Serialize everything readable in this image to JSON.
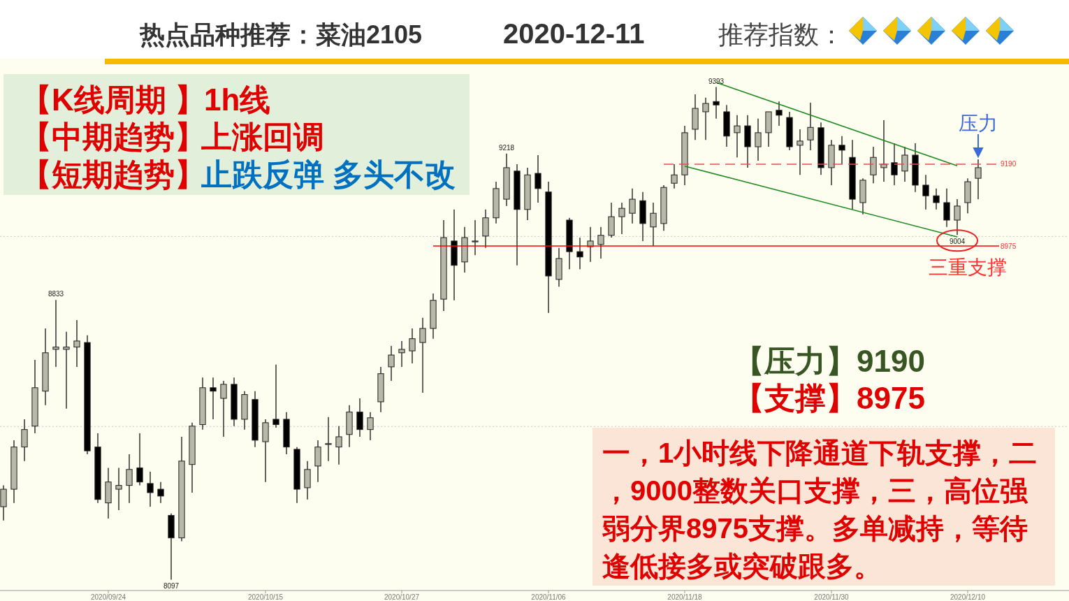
{
  "chart_data": {
    "type": "candlestick",
    "title": "热点品种推荐：菜油2105",
    "subtitle": "2020-12-11",
    "categories": [
      null,
      null,
      null,
      null,
      null,
      null,
      null,
      null,
      null,
      null,
      "2020/09/24",
      null,
      null,
      null,
      null,
      null,
      null,
      null,
      null,
      null,
      null,
      null,
      null,
      null,
      null,
      "2020/10/15",
      null,
      null,
      null,
      null,
      null,
      null,
      null,
      null,
      null,
      null,
      null,
      null,
      "2020/10/27",
      null,
      null,
      null,
      null,
      null,
      null,
      null,
      null,
      null,
      null,
      null,
      null,
      null,
      "2020/11/06",
      null,
      null,
      null,
      null,
      null,
      null,
      null,
      null,
      null,
      null,
      null,
      null,
      "2020/11/18",
      null,
      null,
      null,
      null,
      null,
      null,
      null,
      null,
      null,
      null,
      null,
      null,
      null,
      "2020/11/30",
      null,
      null,
      null,
      null,
      null,
      null,
      null,
      null,
      null,
      null,
      null,
      null,
      "2020/12/10",
      null,
      null,
      null,
      null,
      null,
      null,
      null,
      null
    ],
    "ohlc": [
      [
        8289,
        8345,
        8253,
        8335
      ],
      [
        8335,
        8464,
        8299,
        8446
      ],
      [
        8446,
        8519,
        8409,
        8492
      ],
      [
        8501,
        8675,
        8482,
        8602
      ],
      [
        8593,
        8758,
        8556,
        8694
      ],
      [
        8703,
        8833,
        8657,
        8709
      ],
      [
        8703,
        8749,
        8547,
        8709
      ],
      [
        8709,
        8780,
        8657,
        8725
      ],
      [
        8721,
        8740,
        8427,
        8436
      ],
      [
        8446,
        8482,
        8299,
        8308
      ],
      [
        8299,
        8391,
        8258,
        8354
      ],
      [
        8335,
        8391,
        8280,
        8345
      ],
      [
        8345,
        8427,
        8299,
        8387
      ],
      [
        8391,
        8482,
        8345,
        8354
      ],
      [
        8350,
        8381,
        8289,
        8326
      ],
      [
        8335,
        8354,
        8299,
        8317
      ],
      [
        8266,
        8271,
        8097,
        8207
      ],
      [
        8207,
        8473,
        8198,
        8409
      ],
      [
        8400,
        8510,
        8326,
        8501
      ],
      [
        8505,
        8629,
        8492,
        8602
      ],
      [
        8602,
        8629,
        8519,
        8593
      ],
      [
        8574,
        8620,
        8473,
        8611
      ],
      [
        8611,
        8629,
        8501,
        8519
      ],
      [
        8519,
        8593,
        8492,
        8584
      ],
      [
        8571,
        8593,
        8446,
        8464
      ],
      [
        8460,
        8519,
        8354,
        8510
      ],
      [
        8519,
        8663,
        8497,
        8505
      ],
      [
        8519,
        8538,
        8427,
        8446
      ],
      [
        8440,
        8446,
        8299,
        8335
      ],
      [
        8339,
        8409,
        8308,
        8387
      ],
      [
        8396,
        8464,
        8354,
        8446
      ],
      [
        8455,
        8525,
        8409,
        8455
      ],
      [
        8446,
        8501,
        8400,
        8473
      ],
      [
        8479,
        8556,
        8446,
        8538
      ],
      [
        8538,
        8574,
        8473,
        8492
      ],
      [
        8492,
        8538,
        8464,
        8523
      ],
      [
        8565,
        8657,
        8538,
        8639
      ],
      [
        8657,
        8712,
        8620,
        8688
      ],
      [
        8694,
        8725,
        8657,
        8703
      ],
      [
        8699,
        8758,
        8666,
        8731
      ],
      [
        8721,
        8786,
        8589,
        8758
      ],
      [
        8758,
        8850,
        8731,
        8832
      ],
      [
        8835,
        9043,
        8804,
        8997
      ],
      [
        8988,
        9071,
        8832,
        8924
      ],
      [
        8933,
        9025,
        8905,
        8997
      ],
      [
        8988,
        9043,
        8951,
        8988
      ],
      [
        9001,
        9071,
        8970,
        9049
      ],
      [
        9049,
        9144,
        9034,
        9126
      ],
      [
        9098,
        9218,
        9080,
        9181
      ],
      [
        9172,
        9190,
        8924,
        9071
      ],
      [
        9071,
        9181,
        9043,
        9162
      ],
      [
        9166,
        9214,
        9089,
        9126
      ],
      [
        9117,
        9144,
        8799,
        8896
      ],
      [
        8887,
        8970,
        8868,
        8942
      ],
      [
        9043,
        9049,
        8914,
        8960
      ],
      [
        8960,
        8997,
        8914,
        8946
      ],
      [
        8973,
        9025,
        8933,
        8988
      ],
      [
        8979,
        9025,
        8942,
        9003
      ],
      [
        9003,
        9089,
        8997,
        9052
      ],
      [
        9052,
        9089,
        9006,
        9074
      ],
      [
        9061,
        9126,
        9034,
        9098
      ],
      [
        9094,
        9117,
        8988,
        9034
      ],
      [
        9025,
        9089,
        8975,
        9061
      ],
      [
        9034,
        9135,
        9015,
        9129
      ],
      [
        9140,
        9190,
        9126,
        9162
      ],
      [
        9162,
        9291,
        9135,
        9273
      ],
      [
        9282,
        9374,
        9254,
        9337
      ],
      [
        9328,
        9365,
        9254,
        9350
      ],
      [
        9355,
        9393,
        9310,
        9346
      ],
      [
        9328,
        9346,
        9236,
        9264
      ],
      [
        9273,
        9319,
        9208,
        9291
      ],
      [
        9291,
        9319,
        9181,
        9236
      ],
      [
        9236,
        9310,
        9199,
        9273
      ],
      [
        9273,
        9328,
        9236,
        9328
      ],
      [
        9332,
        9355,
        9291,
        9319
      ],
      [
        9313,
        9328,
        9227,
        9236
      ],
      [
        9240,
        9282,
        9162,
        9251
      ],
      [
        9254,
        9352,
        9227,
        9287
      ],
      [
        9286,
        9300,
        9162,
        9181
      ],
      [
        9181,
        9254,
        9135,
        9240
      ],
      [
        9240,
        9264,
        9190,
        9227
      ],
      [
        9208,
        9254,
        9071,
        9098
      ],
      [
        9089,
        9153,
        9058,
        9148
      ],
      [
        9162,
        9236,
        9140,
        9208
      ],
      [
        9181,
        9306,
        9144,
        9190
      ],
      [
        9194,
        9245,
        9135,
        9162
      ],
      [
        9172,
        9236,
        9144,
        9214
      ],
      [
        9214,
        9245,
        9117,
        9135
      ],
      [
        9135,
        9162,
        9071,
        9107
      ],
      [
        9107,
        9126,
        9071,
        9089
      ],
      [
        9089,
        9126,
        9025,
        9043
      ],
      [
        9043,
        9098,
        9004,
        9080
      ],
      [
        9089,
        9153,
        9061,
        9144
      ],
      [
        9153,
        9203,
        9098,
        9181
      ],
      null,
      null,
      null,
      null,
      null,
      null,
      null
    ],
    "yticks": [
      {
        "value": 9000,
        "label": null
      },
      {
        "value": 8500,
        "label": null
      }
    ],
    "tick_labels": "x",
    "grid": "y",
    "series": [
      {
        "type": "line",
        "color": "#1f8a1f",
        "line_style": "solid",
        "values": [
          null,
          null,
          null,
          null,
          null,
          null,
          null,
          null,
          null,
          null,
          null,
          null,
          null,
          null,
          null,
          null,
          null,
          null,
          null,
          null,
          null,
          null,
          null,
          null,
          null,
          null,
          null,
          null,
          null,
          null,
          null,
          null,
          null,
          null,
          null,
          null,
          null,
          null,
          null,
          null,
          null,
          null,
          null,
          null,
          null,
          null,
          null,
          null,
          null,
          null,
          null,
          null,
          null,
          null,
          null,
          null,
          null,
          null,
          null,
          null,
          null,
          null,
          null,
          null,
          null,
          null,
          null,
          null,
          9405,
          null,
          null,
          null,
          null,
          null,
          null,
          null,
          null,
          null,
          null,
          null,
          null,
          null,
          null,
          null,
          null,
          null,
          null,
          null,
          null,
          null,
          null,
          9186,
          null,
          null,
          null,
          null,
          null,
          null,
          null,
          null,
          null
        ]
      },
      {
        "type": "line",
        "color": "#1f8a1f",
        "line_style": "solid",
        "values": [
          null,
          null,
          null,
          null,
          null,
          null,
          null,
          null,
          null,
          null,
          null,
          null,
          null,
          null,
          null,
          null,
          null,
          null,
          null,
          null,
          null,
          null,
          null,
          null,
          null,
          null,
          null,
          null,
          null,
          null,
          null,
          null,
          null,
          null,
          null,
          null,
          null,
          null,
          null,
          null,
          null,
          null,
          null,
          null,
          null,
          null,
          null,
          null,
          null,
          null,
          null,
          null,
          null,
          null,
          null,
          null,
          null,
          null,
          null,
          null,
          null,
          null,
          null,
          null,
          null,
          9185,
          null,
          null,
          null,
          null,
          null,
          null,
          null,
          null,
          null,
          null,
          null,
          null,
          null,
          null,
          null,
          null,
          null,
          null,
          null,
          null,
          null,
          null,
          null,
          null,
          null,
          8999,
          null,
          null,
          null,
          null,
          null,
          null,
          null,
          null,
          null
        ]
      },
      {
        "type": "line",
        "color": "#e05050",
        "line_style": "dashed",
        "values": [
          null,
          null,
          null,
          null,
          null,
          null,
          null,
          null,
          null,
          null,
          null,
          null,
          null,
          null,
          null,
          null,
          null,
          null,
          null,
          null,
          null,
          null,
          null,
          null,
          null,
          null,
          null,
          null,
          null,
          null,
          null,
          null,
          null,
          null,
          null,
          null,
          null,
          null,
          null,
          null,
          null,
          null,
          null,
          null,
          null,
          null,
          null,
          null,
          null,
          null,
          null,
          null,
          null,
          null,
          null,
          null,
          null,
          null,
          null,
          null,
          null,
          null,
          null,
          9190,
          null,
          null,
          null,
          null,
          null,
          null,
          null,
          null,
          null,
          null,
          null,
          null,
          null,
          null,
          null,
          null,
          null,
          null,
          null,
          null,
          null,
          null,
          null,
          null,
          null,
          null,
          null,
          null,
          null,
          null,
          null,
          9190,
          null,
          null,
          null,
          null,
          null
        ]
      },
      {
        "type": "line",
        "color": "#ff0000",
        "line_style": "solid",
        "values": [
          null,
          null,
          null,
          null,
          null,
          null,
          null,
          null,
          null,
          null,
          null,
          null,
          null,
          null,
          null,
          null,
          null,
          null,
          null,
          null,
          null,
          null,
          null,
          null,
          null,
          null,
          null,
          null,
          null,
          null,
          null,
          null,
          null,
          null,
          null,
          null,
          null,
          null,
          null,
          null,
          null,
          8975,
          null,
          null,
          null,
          null,
          null,
          null,
          null,
          null,
          null,
          null,
          null,
          null,
          null,
          null,
          null,
          null,
          null,
          null,
          null,
          null,
          null,
          null,
          null,
          null,
          null,
          null,
          null,
          null,
          null,
          null,
          null,
          null,
          null,
          null,
          null,
          null,
          null,
          null,
          null,
          null,
          null,
          null,
          null,
          null,
          null,
          null,
          null,
          null,
          null,
          null,
          null,
          null,
          null,
          8975,
          null,
          null,
          null,
          null,
          null
        ]
      }
    ],
    "annotations": [
      "【K线周期 】",
      "1h线",
      "【中期趋势】",
      "上涨回调",
      "【短期趋势】",
      "止跌反弹 多头不改",
      "推荐指数：",
      "【压力】9190",
      "【支撑】8975",
      "一，1小时线下降通道下轨支撑，二，9000整数关口支撑，三，高位强弱分界8975支撑。多单减持，等待逢低接多或突破跟多。",
      "9190",
      "8975",
      "三重支撑",
      {
        "text": "9393",
        "y": 9393
      },
      {
        "text": "9218",
        "y": 9218
      },
      {
        "text": "8833",
        "y": 8833
      },
      {
        "text": "8097",
        "y": 8097
      },
      {
        "text": "9004",
        "y": 9004
      },
      {
        "text": "压力",
        "y": 9203
      }
    ]
  }
}
